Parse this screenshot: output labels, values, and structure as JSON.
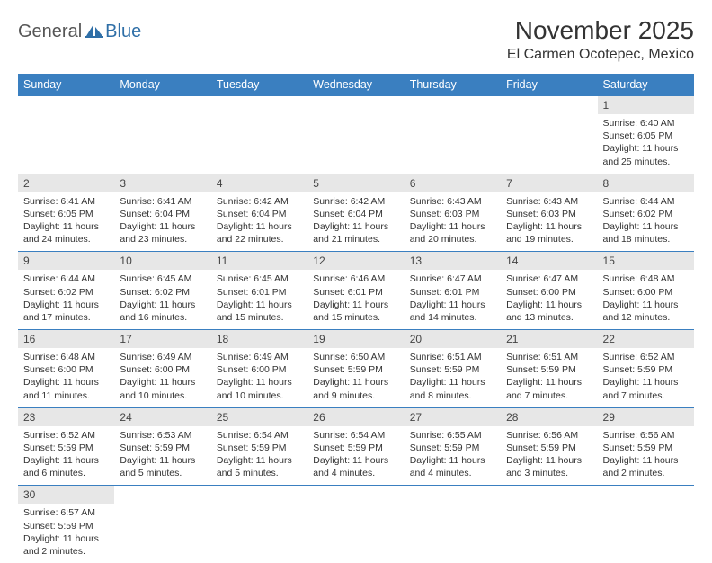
{
  "logo": {
    "text1": "General",
    "text2": "Blue"
  },
  "title": "November 2025",
  "location": "El Carmen Ocotepec, Mexico",
  "colors": {
    "header_bg": "#3a7fc0",
    "header_fg": "#ffffff",
    "daynum_bg": "#e7e7e7",
    "grid_line": "#3a7fc0",
    "text": "#333333"
  },
  "days_of_week": [
    "Sunday",
    "Monday",
    "Tuesday",
    "Wednesday",
    "Thursday",
    "Friday",
    "Saturday"
  ],
  "weeks": [
    [
      null,
      null,
      null,
      null,
      null,
      null,
      {
        "n": "1",
        "sunrise": "Sunrise: 6:40 AM",
        "sunset": "Sunset: 6:05 PM",
        "daylight": "Daylight: 11 hours and 25 minutes."
      }
    ],
    [
      {
        "n": "2",
        "sunrise": "Sunrise: 6:41 AM",
        "sunset": "Sunset: 6:05 PM",
        "daylight": "Daylight: 11 hours and 24 minutes."
      },
      {
        "n": "3",
        "sunrise": "Sunrise: 6:41 AM",
        "sunset": "Sunset: 6:04 PM",
        "daylight": "Daylight: 11 hours and 23 minutes."
      },
      {
        "n": "4",
        "sunrise": "Sunrise: 6:42 AM",
        "sunset": "Sunset: 6:04 PM",
        "daylight": "Daylight: 11 hours and 22 minutes."
      },
      {
        "n": "5",
        "sunrise": "Sunrise: 6:42 AM",
        "sunset": "Sunset: 6:04 PM",
        "daylight": "Daylight: 11 hours and 21 minutes."
      },
      {
        "n": "6",
        "sunrise": "Sunrise: 6:43 AM",
        "sunset": "Sunset: 6:03 PM",
        "daylight": "Daylight: 11 hours and 20 minutes."
      },
      {
        "n": "7",
        "sunrise": "Sunrise: 6:43 AM",
        "sunset": "Sunset: 6:03 PM",
        "daylight": "Daylight: 11 hours and 19 minutes."
      },
      {
        "n": "8",
        "sunrise": "Sunrise: 6:44 AM",
        "sunset": "Sunset: 6:02 PM",
        "daylight": "Daylight: 11 hours and 18 minutes."
      }
    ],
    [
      {
        "n": "9",
        "sunrise": "Sunrise: 6:44 AM",
        "sunset": "Sunset: 6:02 PM",
        "daylight": "Daylight: 11 hours and 17 minutes."
      },
      {
        "n": "10",
        "sunrise": "Sunrise: 6:45 AM",
        "sunset": "Sunset: 6:02 PM",
        "daylight": "Daylight: 11 hours and 16 minutes."
      },
      {
        "n": "11",
        "sunrise": "Sunrise: 6:45 AM",
        "sunset": "Sunset: 6:01 PM",
        "daylight": "Daylight: 11 hours and 15 minutes."
      },
      {
        "n": "12",
        "sunrise": "Sunrise: 6:46 AM",
        "sunset": "Sunset: 6:01 PM",
        "daylight": "Daylight: 11 hours and 15 minutes."
      },
      {
        "n": "13",
        "sunrise": "Sunrise: 6:47 AM",
        "sunset": "Sunset: 6:01 PM",
        "daylight": "Daylight: 11 hours and 14 minutes."
      },
      {
        "n": "14",
        "sunrise": "Sunrise: 6:47 AM",
        "sunset": "Sunset: 6:00 PM",
        "daylight": "Daylight: 11 hours and 13 minutes."
      },
      {
        "n": "15",
        "sunrise": "Sunrise: 6:48 AM",
        "sunset": "Sunset: 6:00 PM",
        "daylight": "Daylight: 11 hours and 12 minutes."
      }
    ],
    [
      {
        "n": "16",
        "sunrise": "Sunrise: 6:48 AM",
        "sunset": "Sunset: 6:00 PM",
        "daylight": "Daylight: 11 hours and 11 minutes."
      },
      {
        "n": "17",
        "sunrise": "Sunrise: 6:49 AM",
        "sunset": "Sunset: 6:00 PM",
        "daylight": "Daylight: 11 hours and 10 minutes."
      },
      {
        "n": "18",
        "sunrise": "Sunrise: 6:49 AM",
        "sunset": "Sunset: 6:00 PM",
        "daylight": "Daylight: 11 hours and 10 minutes."
      },
      {
        "n": "19",
        "sunrise": "Sunrise: 6:50 AM",
        "sunset": "Sunset: 5:59 PM",
        "daylight": "Daylight: 11 hours and 9 minutes."
      },
      {
        "n": "20",
        "sunrise": "Sunrise: 6:51 AM",
        "sunset": "Sunset: 5:59 PM",
        "daylight": "Daylight: 11 hours and 8 minutes."
      },
      {
        "n": "21",
        "sunrise": "Sunrise: 6:51 AM",
        "sunset": "Sunset: 5:59 PM",
        "daylight": "Daylight: 11 hours and 7 minutes."
      },
      {
        "n": "22",
        "sunrise": "Sunrise: 6:52 AM",
        "sunset": "Sunset: 5:59 PM",
        "daylight": "Daylight: 11 hours and 7 minutes."
      }
    ],
    [
      {
        "n": "23",
        "sunrise": "Sunrise: 6:52 AM",
        "sunset": "Sunset: 5:59 PM",
        "daylight": "Daylight: 11 hours and 6 minutes."
      },
      {
        "n": "24",
        "sunrise": "Sunrise: 6:53 AM",
        "sunset": "Sunset: 5:59 PM",
        "daylight": "Daylight: 11 hours and 5 minutes."
      },
      {
        "n": "25",
        "sunrise": "Sunrise: 6:54 AM",
        "sunset": "Sunset: 5:59 PM",
        "daylight": "Daylight: 11 hours and 5 minutes."
      },
      {
        "n": "26",
        "sunrise": "Sunrise: 6:54 AM",
        "sunset": "Sunset: 5:59 PM",
        "daylight": "Daylight: 11 hours and 4 minutes."
      },
      {
        "n": "27",
        "sunrise": "Sunrise: 6:55 AM",
        "sunset": "Sunset: 5:59 PM",
        "daylight": "Daylight: 11 hours and 4 minutes."
      },
      {
        "n": "28",
        "sunrise": "Sunrise: 6:56 AM",
        "sunset": "Sunset: 5:59 PM",
        "daylight": "Daylight: 11 hours and 3 minutes."
      },
      {
        "n": "29",
        "sunrise": "Sunrise: 6:56 AM",
        "sunset": "Sunset: 5:59 PM",
        "daylight": "Daylight: 11 hours and 2 minutes."
      }
    ],
    [
      {
        "n": "30",
        "sunrise": "Sunrise: 6:57 AM",
        "sunset": "Sunset: 5:59 PM",
        "daylight": "Daylight: 11 hours and 2 minutes."
      },
      null,
      null,
      null,
      null,
      null,
      null
    ]
  ]
}
